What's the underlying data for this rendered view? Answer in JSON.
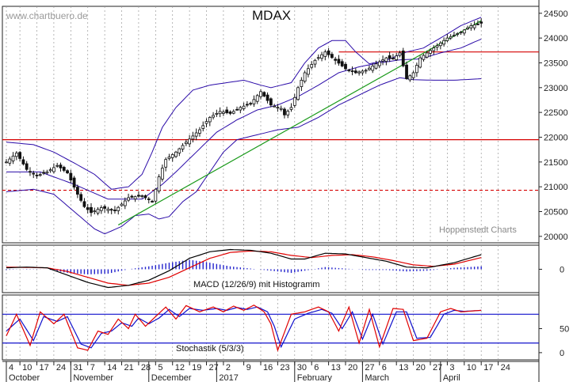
{
  "watermark": "www.chartbuero.de",
  "credit": "Hoppenstedt Charts",
  "colors": {
    "candle": "#111111",
    "band": "#2a0aa8",
    "trend": "#1a9a1a",
    "resistance": "#d60000",
    "macd": "#000000",
    "signal": "#e00000",
    "hist": "#2222cc",
    "stoch_k": "#e00000",
    "stoch_d": "#1010cc",
    "stoch_lines": "#1010cc",
    "grid": "#999999"
  },
  "chart_data": [
    {
      "type": "candlestick",
      "title": "MDAX",
      "y_ticks": [
        20000,
        20500,
        21000,
        21500,
        22000,
        22500,
        23000,
        23500,
        24000,
        24500
      ],
      "ylim": [
        19870,
        24640
      ],
      "n_bars": 141,
      "horizontal_lines": [
        {
          "value": 21950,
          "style": "solid",
          "color": "#d60000"
        },
        {
          "value": 20930,
          "style": "dashed",
          "color": "#d60000"
        },
        {
          "value": 23720,
          "style": "solid",
          "color": "#d60000",
          "from_bar": 98
        }
      ],
      "trendline": {
        "from": [
          33,
          20230
        ],
        "to": [
          140,
          24350
        ]
      },
      "close_anchors": [
        [
          0,
          21500
        ],
        [
          3,
          21680
        ],
        [
          6,
          21350
        ],
        [
          9,
          21220
        ],
        [
          12,
          21300
        ],
        [
          15,
          21430
        ],
        [
          18,
          21280
        ],
        [
          21,
          20850
        ],
        [
          23,
          20600
        ],
        [
          25,
          20480
        ],
        [
          28,
          20580
        ],
        [
          32,
          20520
        ],
        [
          36,
          20780
        ],
        [
          40,
          20820
        ],
        [
          43,
          20700
        ],
        [
          45,
          21200
        ],
        [
          47,
          21550
        ],
        [
          50,
          21700
        ],
        [
          53,
          21900
        ],
        [
          57,
          22150
        ],
        [
          60,
          22400
        ],
        [
          63,
          22520
        ],
        [
          66,
          22480
        ],
        [
          69,
          22600
        ],
        [
          72,
          22680
        ],
        [
          75,
          22920
        ],
        [
          78,
          22650
        ],
        [
          81,
          22580
        ],
        [
          82,
          22450
        ],
        [
          84,
          22600
        ],
        [
          86,
          23000
        ],
        [
          88,
          23300
        ],
        [
          91,
          23550
        ],
        [
          94,
          23720
        ],
        [
          97,
          23550
        ],
        [
          100,
          23380
        ],
        [
          103,
          23300
        ],
        [
          106,
          23350
        ],
        [
          109,
          23480
        ],
        [
          112,
          23600
        ],
        [
          114,
          23580
        ],
        [
          116,
          23700
        ],
        [
          118,
          23180
        ],
        [
          120,
          23300
        ],
        [
          122,
          23600
        ],
        [
          126,
          23800
        ],
        [
          130,
          24000
        ],
        [
          134,
          24120
        ],
        [
          137,
          24250
        ],
        [
          140,
          24300
        ]
      ],
      "bollinger": {
        "upper": [
          [
            0,
            21900
          ],
          [
            8,
            21850
          ],
          [
            14,
            21700
          ],
          [
            20,
            21480
          ],
          [
            26,
            21250
          ],
          [
            31,
            20950
          ],
          [
            36,
            21000
          ],
          [
            40,
            21250
          ],
          [
            43,
            21700
          ],
          [
            46,
            22200
          ],
          [
            50,
            22600
          ],
          [
            55,
            22950
          ],
          [
            60,
            23050
          ],
          [
            65,
            23100
          ],
          [
            70,
            23150
          ],
          [
            75,
            23050
          ],
          [
            78,
            23000
          ],
          [
            81,
            23050
          ],
          [
            84,
            23100
          ],
          [
            88,
            23500
          ],
          [
            92,
            23800
          ],
          [
            96,
            23950
          ],
          [
            100,
            23950
          ],
          [
            103,
            23720
          ],
          [
            107,
            23480
          ],
          [
            112,
            23550
          ],
          [
            118,
            23720
          ],
          [
            123,
            23800
          ],
          [
            128,
            24000
          ],
          [
            134,
            24250
          ],
          [
            140,
            24420
          ]
        ],
        "middle": [
          [
            0,
            21300
          ],
          [
            10,
            21300
          ],
          [
            20,
            21050
          ],
          [
            30,
            20750
          ],
          [
            40,
            20750
          ],
          [
            46,
            21050
          ],
          [
            50,
            21300
          ],
          [
            56,
            21700
          ],
          [
            62,
            22100
          ],
          [
            68,
            22350
          ],
          [
            74,
            22550
          ],
          [
            80,
            22650
          ],
          [
            86,
            22820
          ],
          [
            92,
            23050
          ],
          [
            98,
            23300
          ],
          [
            104,
            23420
          ],
          [
            110,
            23500
          ],
          [
            116,
            23560
          ],
          [
            122,
            23580
          ],
          [
            128,
            23700
          ],
          [
            134,
            23800
          ],
          [
            140,
            23980
          ]
        ],
        "lower": [
          [
            0,
            20900
          ],
          [
            8,
            20950
          ],
          [
            14,
            20850
          ],
          [
            20,
            20500
          ],
          [
            26,
            20150
          ],
          [
            29,
            20050
          ],
          [
            34,
            20200
          ],
          [
            38,
            20420
          ],
          [
            42,
            20450
          ],
          [
            45,
            20350
          ],
          [
            48,
            20400
          ],
          [
            52,
            20700
          ],
          [
            56,
            20900
          ],
          [
            58,
            21100
          ],
          [
            60,
            21300
          ],
          [
            64,
            21700
          ],
          [
            68,
            21950
          ],
          [
            74,
            22050
          ],
          [
            80,
            22150
          ],
          [
            86,
            22200
          ],
          [
            92,
            22400
          ],
          [
            98,
            22650
          ],
          [
            104,
            22850
          ],
          [
            110,
            23050
          ],
          [
            116,
            23200
          ],
          [
            120,
            23160
          ],
          [
            126,
            23150
          ],
          [
            132,
            23150
          ],
          [
            140,
            23180
          ]
        ]
      }
    },
    {
      "type": "line",
      "title": "MACD (12/26/9) mit Histogramm",
      "y_ticks": [
        0
      ],
      "ylim": [
        -320,
        330
      ],
      "macd": [
        [
          0,
          20
        ],
        [
          6,
          30
        ],
        [
          12,
          20
        ],
        [
          18,
          -80
        ],
        [
          24,
          -180
        ],
        [
          30,
          -250
        ],
        [
          36,
          -220
        ],
        [
          42,
          -150
        ],
        [
          48,
          -20
        ],
        [
          54,
          150
        ],
        [
          60,
          240
        ],
        [
          66,
          270
        ],
        [
          72,
          260
        ],
        [
          78,
          220
        ],
        [
          84,
          140
        ],
        [
          88,
          140
        ],
        [
          94,
          220
        ],
        [
          100,
          210
        ],
        [
          106,
          160
        ],
        [
          112,
          110
        ],
        [
          118,
          30
        ],
        [
          124,
          20
        ],
        [
          132,
          90
        ],
        [
          140,
          200
        ]
      ],
      "signal": [
        [
          0,
          30
        ],
        [
          6,
          25
        ],
        [
          12,
          20
        ],
        [
          18,
          -30
        ],
        [
          24,
          -110
        ],
        [
          30,
          -190
        ],
        [
          36,
          -220
        ],
        [
          42,
          -190
        ],
        [
          48,
          -110
        ],
        [
          54,
          20
        ],
        [
          60,
          150
        ],
        [
          66,
          230
        ],
        [
          72,
          250
        ],
        [
          78,
          240
        ],
        [
          84,
          190
        ],
        [
          90,
          160
        ],
        [
          96,
          190
        ],
        [
          102,
          200
        ],
        [
          108,
          170
        ],
        [
          114,
          120
        ],
        [
          120,
          60
        ],
        [
          126,
          40
        ],
        [
          132,
          70
        ],
        [
          140,
          160
        ]
      ],
      "histogram": [
        [
          0,
          -10
        ],
        [
          6,
          5
        ],
        [
          12,
          0
        ],
        [
          18,
          -50
        ],
        [
          24,
          -70
        ],
        [
          30,
          -60
        ],
        [
          36,
          0
        ],
        [
          42,
          40
        ],
        [
          48,
          90
        ],
        [
          54,
          130
        ],
        [
          60,
          90
        ],
        [
          66,
          40
        ],
        [
          72,
          10
        ],
        [
          78,
          -20
        ],
        [
          84,
          -50
        ],
        [
          88,
          -20
        ],
        [
          94,
          30
        ],
        [
          100,
          10
        ],
        [
          106,
          -10
        ],
        [
          112,
          -10
        ],
        [
          118,
          -30
        ],
        [
          124,
          -20
        ],
        [
          132,
          20
        ],
        [
          140,
          40
        ]
      ]
    },
    {
      "type": "line",
      "title": "Stochastik (5/3/3)",
      "y_ticks": [
        50,
        0
      ],
      "ylim": [
        -15,
        120
      ],
      "reference_lines": [
        80,
        20
      ],
      "k": [
        [
          0,
          35
        ],
        [
          3,
          80
        ],
        [
          7,
          15
        ],
        [
          10,
          85
        ],
        [
          14,
          60
        ],
        [
          17,
          80
        ],
        [
          21,
          10
        ],
        [
          24,
          5
        ],
        [
          27,
          45
        ],
        [
          30,
          38
        ],
        [
          33,
          70
        ],
        [
          36,
          50
        ],
        [
          38,
          80
        ],
        [
          41,
          55
        ],
        [
          44,
          75
        ],
        [
          47,
          95
        ],
        [
          50,
          70
        ],
        [
          53,
          98
        ],
        [
          57,
          85
        ],
        [
          61,
          95
        ],
        [
          64,
          85
        ],
        [
          67,
          97
        ],
        [
          70,
          88
        ],
        [
          73,
          99
        ],
        [
          76,
          85
        ],
        [
          78,
          60
        ],
        [
          80,
          5
        ],
        [
          84,
          80
        ],
        [
          88,
          85
        ],
        [
          92,
          95
        ],
        [
          95,
          85
        ],
        [
          98,
          45
        ],
        [
          101,
          95
        ],
        [
          104,
          20
        ],
        [
          107,
          90
        ],
        [
          110,
          12
        ],
        [
          114,
          92
        ],
        [
          117,
          90
        ],
        [
          120,
          25
        ],
        [
          124,
          30
        ],
        [
          128,
          85
        ],
        [
          131,
          92
        ],
        [
          134,
          85
        ],
        [
          140,
          88
        ]
      ],
      "d": [
        [
          0,
          45
        ],
        [
          4,
          70
        ],
        [
          8,
          25
        ],
        [
          11,
          75
        ],
        [
          15,
          65
        ],
        [
          18,
          75
        ],
        [
          22,
          18
        ],
        [
          25,
          10
        ],
        [
          28,
          40
        ],
        [
          31,
          45
        ],
        [
          34,
          62
        ],
        [
          37,
          55
        ],
        [
          39,
          72
        ],
        [
          42,
          60
        ],
        [
          45,
          72
        ],
        [
          48,
          90
        ],
        [
          51,
          75
        ],
        [
          54,
          92
        ],
        [
          58,
          88
        ],
        [
          62,
          92
        ],
        [
          65,
          88
        ],
        [
          68,
          94
        ],
        [
          71,
          90
        ],
        [
          74,
          95
        ],
        [
          77,
          85
        ],
        [
          79,
          55
        ],
        [
          81,
          12
        ],
        [
          85,
          70
        ],
        [
          89,
          82
        ],
        [
          93,
          90
        ],
        [
          96,
          82
        ],
        [
          99,
          50
        ],
        [
          102,
          85
        ],
        [
          105,
          28
        ],
        [
          108,
          80
        ],
        [
          111,
          18
        ],
        [
          115,
          85
        ],
        [
          118,
          85
        ],
        [
          121,
          30
        ],
        [
          125,
          32
        ],
        [
          129,
          80
        ],
        [
          132,
          88
        ],
        [
          135,
          86
        ],
        [
          140,
          88
        ]
      ]
    }
  ],
  "x_axis": {
    "day_ticks": [
      {
        "bar": 0,
        "label": "4"
      },
      {
        "bar": 4,
        "label": "10"
      },
      {
        "bar": 9,
        "label": "17"
      },
      {
        "bar": 14,
        "label": "24"
      },
      {
        "bar": 19,
        "label": "31"
      },
      {
        "bar": 24,
        "label": "7"
      },
      {
        "bar": 29,
        "label": "14"
      },
      {
        "bar": 34,
        "label": "21"
      },
      {
        "bar": 39,
        "label": "28"
      },
      {
        "bar": 44,
        "label": "5"
      },
      {
        "bar": 49,
        "label": "12"
      },
      {
        "bar": 54,
        "label": "19"
      },
      {
        "bar": 59,
        "label": "27"
      },
      {
        "bar": 64,
        "label": "2"
      },
      {
        "bar": 70,
        "label": "9"
      },
      {
        "bar": 75,
        "label": "16"
      },
      {
        "bar": 80,
        "label": "23"
      },
      {
        "bar": 85,
        "label": "30"
      },
      {
        "bar": 90,
        "label": "6"
      },
      {
        "bar": 95,
        "label": "13"
      },
      {
        "bar": 100,
        "label": "20"
      },
      {
        "bar": 105,
        "label": "27"
      },
      {
        "bar": 110,
        "label": "6"
      },
      {
        "bar": 115,
        "label": "13"
      },
      {
        "bar": 120,
        "label": "20"
      },
      {
        "bar": 125,
        "label": "27"
      },
      {
        "bar": 130,
        "label": "3"
      },
      {
        "bar": 135,
        "label": "10"
      },
      {
        "bar": 140,
        "label": "17"
      },
      {
        "bar": 145,
        "label": "24"
      }
    ],
    "month_labels": [
      {
        "bar": 0,
        "label": "October"
      },
      {
        "bar": 19,
        "label": "November"
      },
      {
        "bar": 42,
        "label": "December"
      },
      {
        "bar": 62,
        "label": "2017"
      },
      {
        "bar": 85,
        "label": "February"
      },
      {
        "bar": 105,
        "label": "March"
      },
      {
        "bar": 128,
        "label": "April"
      }
    ]
  }
}
